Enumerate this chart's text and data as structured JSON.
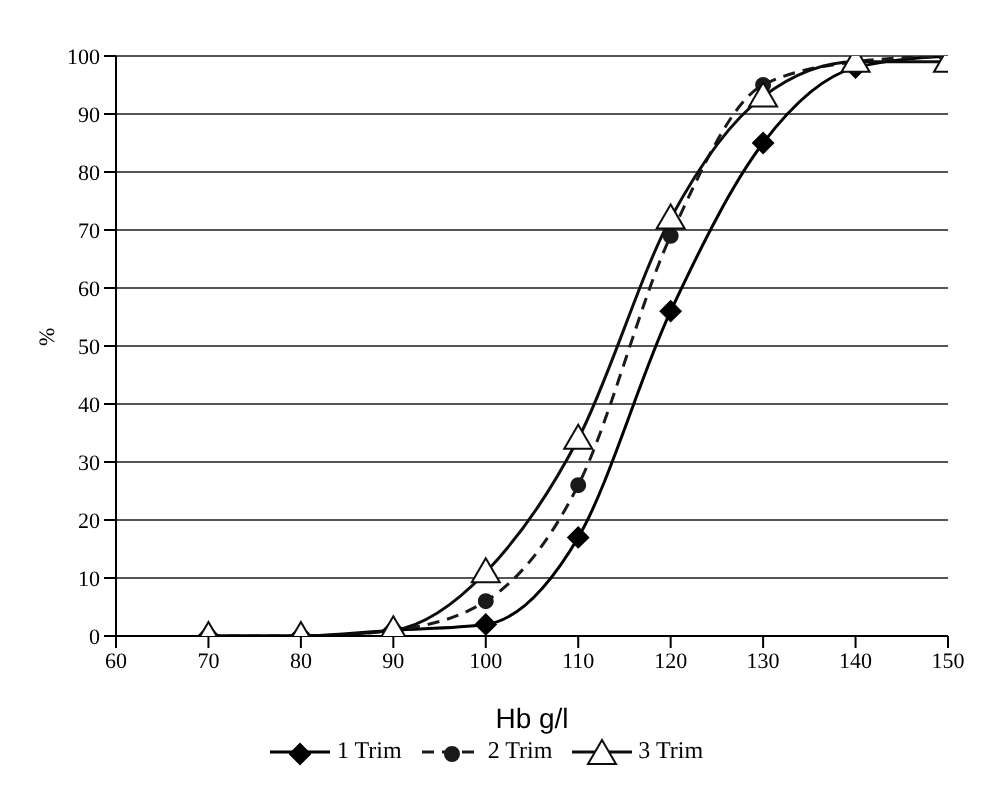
{
  "chart_data": {
    "type": "line",
    "xlabel": "Hb  g/l",
    "ylabel": "%",
    "x": [
      70,
      80,
      90,
      100,
      110,
      120,
      130,
      140,
      150
    ],
    "series": [
      {
        "name": "1 Trim",
        "color": "#000000",
        "marker": "diamond",
        "line_style": "solid",
        "values": [
          0,
          0,
          1,
          2,
          17,
          56,
          85,
          98,
          100
        ]
      },
      {
        "name": "2 Trim",
        "color": "#1a1a1a",
        "marker": "circle",
        "line_style": "dashed",
        "values": [
          0,
          0,
          1,
          6,
          26,
          69,
          95,
          99,
          100
        ]
      },
      {
        "name": "3 Trim",
        "color": "#0d0d0d",
        "marker": "triangle",
        "line_style": "solid",
        "values": [
          0,
          0,
          1,
          11,
          34,
          72,
          93,
          99,
          99
        ]
      }
    ],
    "xlim": [
      60,
      150
    ],
    "xticks": [
      60,
      70,
      80,
      90,
      100,
      110,
      120,
      130,
      140,
      150
    ],
    "ylim": [
      0,
      100
    ],
    "yticks": [
      0,
      10,
      20,
      30,
      40,
      50,
      60,
      70,
      80,
      90,
      100
    ],
    "grid": "y",
    "legend": "bottom"
  }
}
